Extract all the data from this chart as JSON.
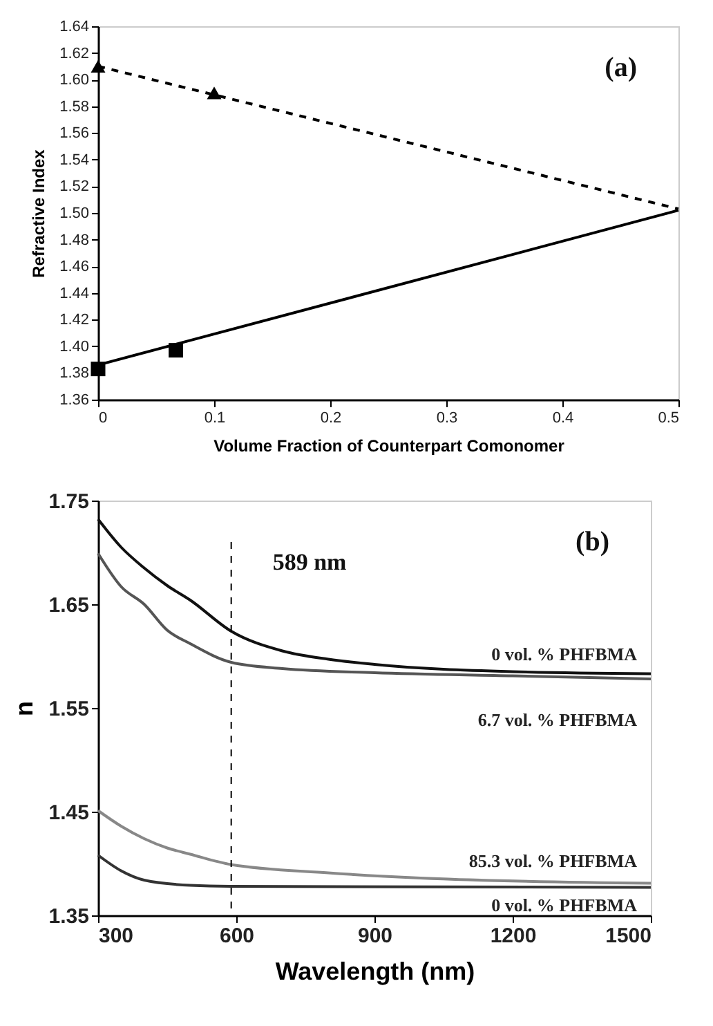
{
  "chart_data": [
    {
      "type": "scatter",
      "xlabel": "Volume Fraction of Counterpart Comonomer",
      "ylabel": "Refractive Index",
      "annotations": [
        "(a)"
      ],
      "xlim": [
        0,
        0.5
      ],
      "xticks": [
        0,
        0.1,
        0.2,
        0.3,
        0.4,
        0.5
      ],
      "ylim": [
        1.36,
        1.64
      ],
      "yticks": [
        {
          "value": 1.36,
          "label": "1.36"
        },
        {
          "value": 1.38,
          "label": "1.38"
        },
        {
          "value": 1.4,
          "label": "1.40"
        },
        {
          "value": 1.42,
          "label": "1.42"
        },
        {
          "value": 1.44,
          "label": "1.44"
        },
        {
          "value": 1.46,
          "label": "1.46"
        },
        {
          "value": 1.48,
          "label": "1.48"
        },
        {
          "value": 1.5,
          "label": "1.50"
        },
        {
          "value": 1.52,
          "label": "1.52"
        },
        {
          "value": 1.54,
          "label": "1.54"
        },
        {
          "value": 1.56,
          "label": "1.56"
        },
        {
          "value": 1.58,
          "label": "1.58"
        },
        {
          "value": 1.6,
          "label": "1.60"
        },
        {
          "value": 1.62,
          "label": "1.62"
        },
        {
          "value": 1.64,
          "label": "1.64"
        }
      ],
      "grid": false,
      "series": [
        {
          "type": "line",
          "color": "#000000",
          "line_style": "dashed",
          "x": [
            0,
            0.5
          ],
          "values": [
            1.61,
            1.503
          ]
        },
        {
          "type": "line",
          "color": "#000000",
          "line_style": "solid",
          "x": [
            0,
            0.5
          ],
          "values": [
            1.386,
            1.502
          ]
        },
        {
          "type": "scatter",
          "color": "#000000",
          "marker": "triangle",
          "x": [
            0,
            0.1
          ],
          "values": [
            1.61,
            1.59
          ]
        },
        {
          "type": "scatter",
          "color": "#000000",
          "marker": "square",
          "x": [
            0,
            0.067
          ],
          "values": [
            1.383,
            1.397
          ]
        }
      ]
    },
    {
      "type": "line",
      "xlabel": "Wavelength (nm)",
      "ylabel": "n",
      "annotations": [
        "(b)"
      ],
      "xlim": [
        300,
        1500
      ],
      "xticks": [
        300,
        600,
        900,
        1200,
        1500
      ],
      "ylim": [
        1.35,
        1.75
      ],
      "yticks": [
        1.35,
        1.45,
        1.55,
        1.65,
        1.75
      ],
      "grid": false,
      "ref_lines": [
        {
          "axis": "x",
          "value": 589,
          "label": "589 nm",
          "line_style": "dashed",
          "color": "#000000"
        }
      ],
      "series": [
        {
          "name": "0 vol. % PHFBMA",
          "color": "#111111",
          "x": [
            300,
            350,
            400,
            450,
            500,
            589,
            700,
            800,
            900,
            1200,
            1500
          ],
          "values": [
            1.732,
            1.705,
            1.685,
            1.668,
            1.654,
            1.624,
            1.605,
            1.597,
            1.592,
            1.585,
            1.583
          ]
        },
        {
          "name": "6.7 vol. % PHFBMA",
          "color": "#555555",
          "x": [
            300,
            350,
            400,
            450,
            500,
            589,
            700,
            900,
            1200,
            1500
          ],
          "values": [
            1.699,
            1.667,
            1.65,
            1.625,
            1.612,
            1.594,
            1.588,
            1.584,
            1.581,
            1.578
          ]
        },
        {
          "name": "85.3 vol. % PHFBMA",
          "color": "#888888",
          "x": [
            300,
            350,
            400,
            450,
            500,
            589,
            800,
            1000,
            1500
          ],
          "values": [
            1.451,
            1.436,
            1.424,
            1.415,
            1.409,
            1.399,
            1.391,
            1.386,
            1.381
          ]
        },
        {
          "name": "0 vol. % PHFBMA",
          "color": "#333333",
          "x": [
            300,
            350,
            400,
            500,
            589,
            1500
          ],
          "values": [
            1.408,
            1.393,
            1.384,
            1.379,
            1.378,
            1.377
          ]
        }
      ]
    }
  ]
}
